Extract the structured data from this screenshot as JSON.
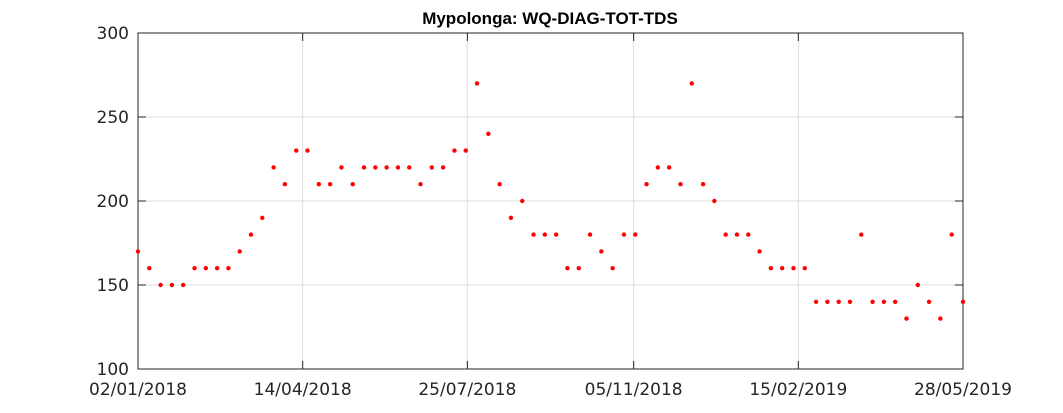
{
  "chart_data": {
    "type": "scatter",
    "title": "Mypolonga: WQ-DIAG-TOT-TDS",
    "xlabel": "",
    "ylabel": "",
    "ylim": [
      100,
      300
    ],
    "xlim_days": [
      0,
      511
    ],
    "grid": true,
    "marker_color": "#ff0000",
    "y_ticks": [
      {
        "value": 100,
        "label": "100"
      },
      {
        "value": 150,
        "label": "150"
      },
      {
        "value": 200,
        "label": "200"
      },
      {
        "value": 250,
        "label": "250"
      },
      {
        "value": 300,
        "label": "300"
      }
    ],
    "x_ticks": [
      {
        "day": 0,
        "label": "02/01/2018"
      },
      {
        "day": 102,
        "label": "14/04/2018"
      },
      {
        "day": 204,
        "label": "25/07/2018"
      },
      {
        "day": 307,
        "label": "05/11/2018"
      },
      {
        "day": 409,
        "label": "15/02/2019"
      },
      {
        "day": 511,
        "label": "28/05/2019"
      }
    ],
    "series": [
      {
        "name": "WQ-DIAG-TOT-TDS",
        "points": [
          {
            "day": 0,
            "value": 170
          },
          {
            "day": 7,
            "value": 160
          },
          {
            "day": 14,
            "value": 150
          },
          {
            "day": 21,
            "value": 150
          },
          {
            "day": 28,
            "value": 150
          },
          {
            "day": 35,
            "value": 160
          },
          {
            "day": 42,
            "value": 160
          },
          {
            "day": 49,
            "value": 160
          },
          {
            "day": 56,
            "value": 160
          },
          {
            "day": 63,
            "value": 170
          },
          {
            "day": 70,
            "value": 180
          },
          {
            "day": 77,
            "value": 190
          },
          {
            "day": 84,
            "value": 220
          },
          {
            "day": 91,
            "value": 210
          },
          {
            "day": 98,
            "value": 230
          },
          {
            "day": 105,
            "value": 230
          },
          {
            "day": 112,
            "value": 210
          },
          {
            "day": 119,
            "value": 210
          },
          {
            "day": 126,
            "value": 220
          },
          {
            "day": 133,
            "value": 210
          },
          {
            "day": 140,
            "value": 220
          },
          {
            "day": 147,
            "value": 220
          },
          {
            "day": 154,
            "value": 220
          },
          {
            "day": 161,
            "value": 220
          },
          {
            "day": 168,
            "value": 220
          },
          {
            "day": 175,
            "value": 210
          },
          {
            "day": 182,
            "value": 220
          },
          {
            "day": 189,
            "value": 220
          },
          {
            "day": 196,
            "value": 230
          },
          {
            "day": 203,
            "value": 230
          },
          {
            "day": 210,
            "value": 270
          },
          {
            "day": 217,
            "value": 240
          },
          {
            "day": 224,
            "value": 210
          },
          {
            "day": 231,
            "value": 190
          },
          {
            "day": 238,
            "value": 200
          },
          {
            "day": 245,
            "value": 180
          },
          {
            "day": 252,
            "value": 180
          },
          {
            "day": 259,
            "value": 180
          },
          {
            "day": 266,
            "value": 160
          },
          {
            "day": 273,
            "value": 160
          },
          {
            "day": 280,
            "value": 180
          },
          {
            "day": 287,
            "value": 170
          },
          {
            "day": 294,
            "value": 160
          },
          {
            "day": 301,
            "value": 180
          },
          {
            "day": 308,
            "value": 180
          },
          {
            "day": 315,
            "value": 210
          },
          {
            "day": 322,
            "value": 220
          },
          {
            "day": 329,
            "value": 220
          },
          {
            "day": 336,
            "value": 210
          },
          {
            "day": 343,
            "value": 270
          },
          {
            "day": 350,
            "value": 210
          },
          {
            "day": 357,
            "value": 200
          },
          {
            "day": 364,
            "value": 180
          },
          {
            "day": 371,
            "value": 180
          },
          {
            "day": 378,
            "value": 180
          },
          {
            "day": 385,
            "value": 170
          },
          {
            "day": 392,
            "value": 160
          },
          {
            "day": 399,
            "value": 160
          },
          {
            "day": 406,
            "value": 160
          },
          {
            "day": 413,
            "value": 160
          },
          {
            "day": 420,
            "value": 140
          },
          {
            "day": 427,
            "value": 140
          },
          {
            "day": 434,
            "value": 140
          },
          {
            "day": 441,
            "value": 140
          },
          {
            "day": 448,
            "value": 180
          },
          {
            "day": 455,
            "value": 140
          },
          {
            "day": 462,
            "value": 140
          },
          {
            "day": 469,
            "value": 140
          },
          {
            "day": 476,
            "value": 130
          },
          {
            "day": 483,
            "value": 150
          },
          {
            "day": 490,
            "value": 140
          },
          {
            "day": 497,
            "value": 130
          },
          {
            "day": 504,
            "value": 180
          },
          {
            "day": 511,
            "value": 140
          }
        ]
      }
    ]
  }
}
